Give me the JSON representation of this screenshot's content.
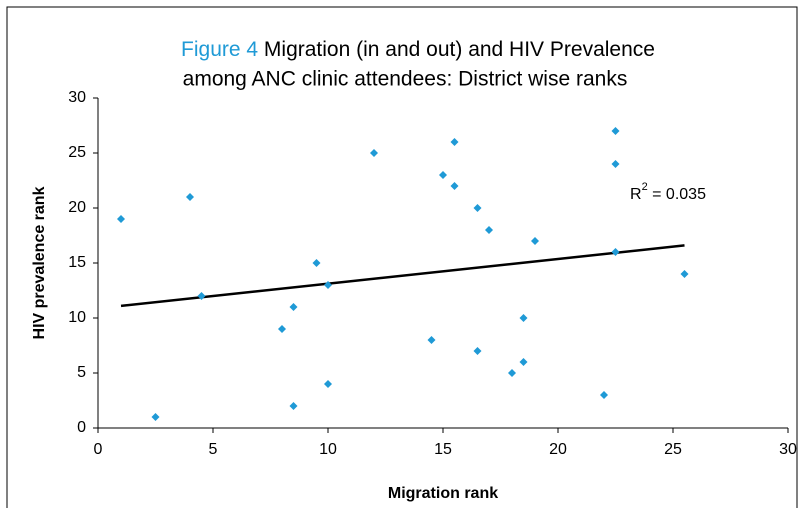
{
  "chart_data": {
    "type": "scatter",
    "title_prefix": "Figure 4",
    "title": [
      "Migration (in and out) and HIV Prevalence",
      "among ANC clinic attendees: District wise ranks"
    ],
    "x_label": "Migration rank",
    "y_label": "HIV prevalence rank",
    "xlim": [
      0,
      30
    ],
    "xticks": [
      0,
      5,
      10,
      15,
      20,
      25,
      30
    ],
    "ylim": [
      0,
      30
    ],
    "yticks": [
      0,
      5,
      10,
      15,
      20,
      25,
      30
    ],
    "grid": false,
    "color": "#1f9ad6",
    "x": [
      1,
      2.5,
      4,
      4.5,
      8,
      8.5,
      8.5,
      9.5,
      10,
      10,
      12,
      14.5,
      15,
      15.5,
      15.5,
      16.5,
      16.5,
      17,
      18,
      18.5,
      18.5,
      19,
      22,
      22.5,
      22.5,
      22.5,
      25.5
    ],
    "y": [
      19,
      1,
      21,
      12,
      9,
      11,
      2,
      15,
      13,
      4,
      25,
      8,
      23,
      26,
      22,
      20,
      7,
      18,
      5,
      10,
      6,
      17,
      3,
      27,
      24,
      16,
      14
    ],
    "trendline": {
      "x": [
        1,
        25.5
      ],
      "y": [
        11.1,
        16.6
      ],
      "color": "#000000"
    },
    "annotation": {
      "base": "R",
      "sup": "2",
      "rest": " = 0.035"
    }
  }
}
